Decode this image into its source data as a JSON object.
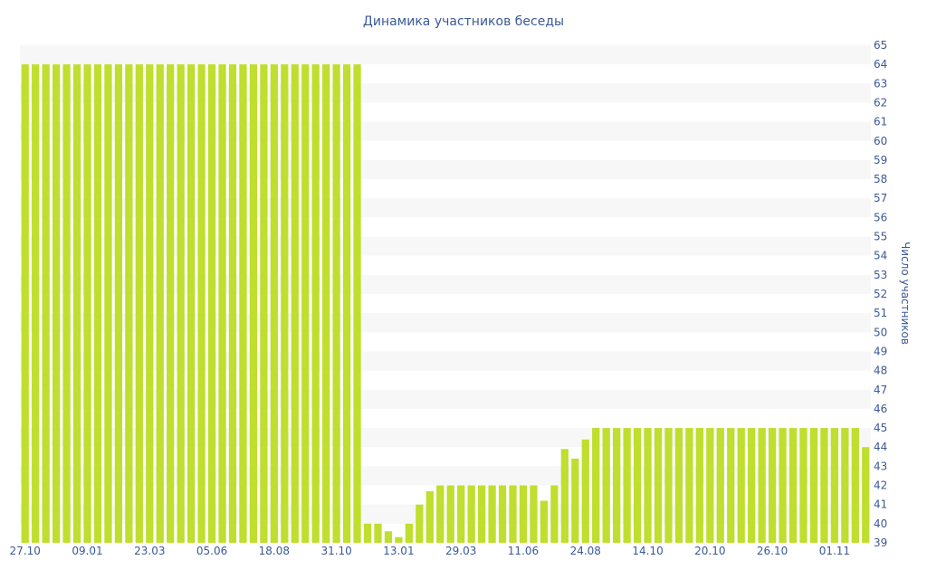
{
  "chart_data": {
    "type": "bar",
    "title": "Динамика участников беседы",
    "ylabel": "Число участников",
    "xlabel": "",
    "ylim": [
      39,
      65
    ],
    "y_ticks": [
      39,
      40,
      41,
      42,
      43,
      44,
      45,
      46,
      47,
      48,
      49,
      50,
      51,
      52,
      53,
      54,
      55,
      56,
      57,
      58,
      59,
      60,
      61,
      62,
      63,
      64,
      65
    ],
    "x_tick_labels": [
      {
        "index": 0,
        "label": "27.10"
      },
      {
        "index": 6,
        "label": "09.01"
      },
      {
        "index": 12,
        "label": "23.03"
      },
      {
        "index": 18,
        "label": "05.06"
      },
      {
        "index": 24,
        "label": "18.08"
      },
      {
        "index": 30,
        "label": "31.10"
      },
      {
        "index": 36,
        "label": "13.01"
      },
      {
        "index": 42,
        "label": "29.03"
      },
      {
        "index": 48,
        "label": "11.06"
      },
      {
        "index": 54,
        "label": "24.08"
      },
      {
        "index": 60,
        "label": "14.10"
      },
      {
        "index": 66,
        "label": "20.10"
      },
      {
        "index": 72,
        "label": "26.10"
      },
      {
        "index": 78,
        "label": "01.11"
      }
    ],
    "y_axis_side": "right",
    "grid": "horizontal-bands",
    "bar_color": "#bfde2e",
    "band_color": "#f7f7f7",
    "text_color": "#3b5998",
    "values": [
      64,
      64,
      64,
      64,
      64,
      64,
      64,
      64,
      64,
      64,
      64,
      64,
      64,
      64,
      64,
      64,
      64,
      64,
      64,
      64,
      64,
      64,
      64,
      64,
      64,
      64,
      64,
      64,
      64,
      64,
      64,
      64,
      64,
      40,
      40,
      39.6,
      39.3,
      40,
      41,
      41.7,
      42,
      42,
      42,
      42,
      42,
      42,
      42,
      42,
      42,
      42,
      41.2,
      42,
      43.9,
      43.4,
      44.4,
      45,
      45,
      45,
      45,
      45,
      45,
      45,
      45,
      45,
      45,
      45,
      45,
      45,
      45,
      45,
      45,
      45,
      45,
      45,
      45,
      45,
      45,
      45,
      45,
      45,
      45,
      44
    ]
  }
}
